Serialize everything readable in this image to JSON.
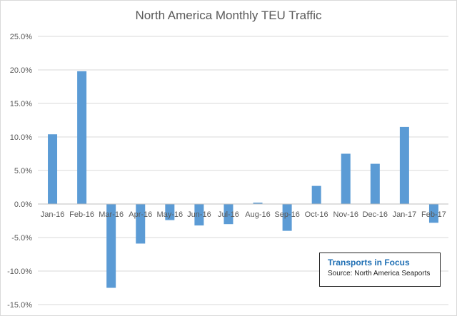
{
  "chart_data": {
    "type": "bar",
    "title": "North America Monthly TEU Traffic",
    "categories": [
      "Jan-16",
      "Feb-16",
      "Mar-16",
      "Apr-16",
      "May-16",
      "Jun-16",
      "Jul-16",
      "Aug-16",
      "Sep-16",
      "Oct-16",
      "Nov-16",
      "Dec-16",
      "Jan-17",
      "Feb-17"
    ],
    "values": [
      10.4,
      19.8,
      -12.5,
      -5.9,
      -2.4,
      -3.2,
      -3.0,
      0.2,
      -4.0,
      2.7,
      7.5,
      6.0,
      11.5,
      -2.8
    ],
    "yticks": [
      "25.0%",
      "20.0%",
      "15.0%",
      "10.0%",
      "5.0%",
      "0.0%",
      "-5.0%",
      "-10.0%",
      "-15.0%"
    ],
    "ylim": [
      -15,
      25
    ],
    "unit": "%",
    "grid": true,
    "bar_color": "#5b9bd5"
  },
  "annotation": {
    "title": "Transports in Focus",
    "source": "Source: North America Seaports"
  }
}
